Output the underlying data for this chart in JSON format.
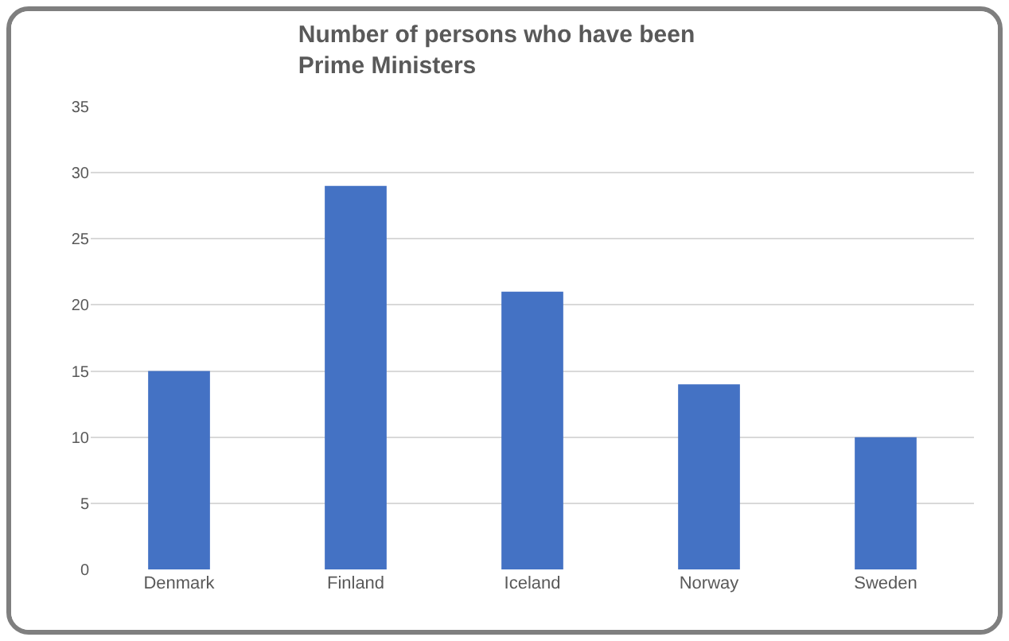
{
  "chart_data": {
    "type": "bar",
    "title": "Number of persons who have been Prime Ministers",
    "categories": [
      "Denmark",
      "Finland",
      "Iceland",
      "Norway",
      "Sweden"
    ],
    "values": [
      15,
      29,
      21,
      14,
      10
    ],
    "color": "#4472c4",
    "ylim": [
      0,
      35
    ],
    "yticks": [
      0,
      5,
      10,
      15,
      20,
      25,
      30,
      35
    ],
    "grid": "y"
  }
}
